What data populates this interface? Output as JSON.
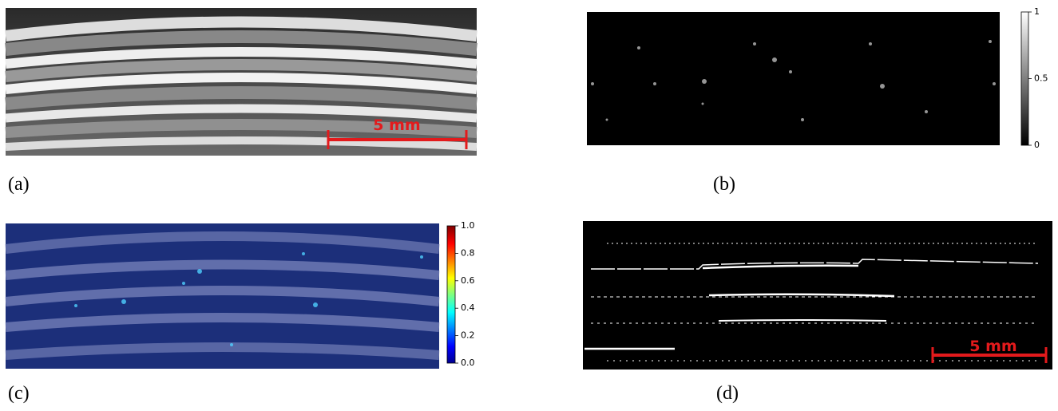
{
  "panels": [
    {
      "label": "(a)",
      "scale_bar": "5 mm"
    },
    {
      "label": "(b)",
      "colorbar": {
        "range": [
          0,
          1
        ],
        "ticks": [
          0,
          0.5,
          1
        ]
      }
    },
    {
      "label": "(c)",
      "colorbar": {
        "range": [
          0,
          1
        ],
        "ticks": [
          {
            "value": 0,
            "label": "0.0"
          },
          {
            "value": 0.2,
            "label": "0.2"
          },
          {
            "value": 0.4,
            "label": "0.4"
          },
          {
            "value": 0.6,
            "label": "0.6"
          },
          {
            "value": 0.8,
            "label": "0.8"
          },
          {
            "value": 1,
            "label": "1.0"
          }
        ]
      }
    },
    {
      "label": "(d)",
      "scale_bar": "5 mm"
    }
  ]
}
